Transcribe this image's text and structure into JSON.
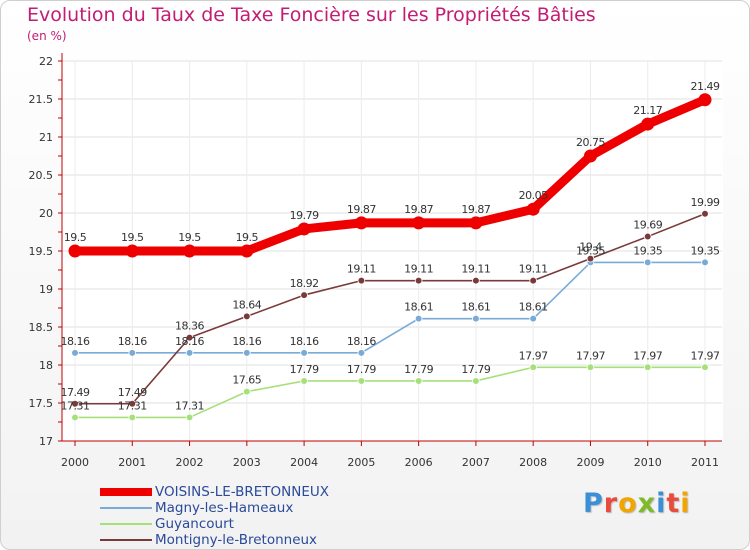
{
  "title": "Evolution du Taux de Taxe Foncière sur les Propriétés Bâties",
  "subtitle": "(en %)",
  "brand": {
    "letters": [
      "P",
      "r",
      "o",
      "x",
      "i",
      "t",
      "i"
    ],
    "colors": [
      "#3a8fd6",
      "#e94b3c",
      "#f2a400",
      "#7fba2a",
      "#3a8fd6",
      "#e94b3c",
      "#f2a400"
    ]
  },
  "chart_data": {
    "type": "line",
    "x": [
      "2000",
      "2001",
      "2002",
      "2003",
      "2004",
      "2005",
      "2006",
      "2007",
      "2008",
      "2009",
      "2010",
      "2011"
    ],
    "ylim": [
      17,
      22
    ],
    "yticks": [
      "17",
      "17.5",
      "18",
      "18.5",
      "19",
      "19.5",
      "20",
      "20.5",
      "21",
      "21.5",
      "22"
    ],
    "grid": true,
    "legend_position": "bottom-left",
    "series": [
      {
        "name": "VOISINS-LE-BRETONNEUX",
        "color": "#ee0000",
        "values": [
          19.5,
          19.5,
          19.5,
          19.5,
          19.79,
          19.87,
          19.87,
          19.87,
          20.05,
          20.75,
          21.17,
          21.49
        ],
        "labels": [
          "19.5",
          "19.5",
          "19.5",
          "19.5",
          "19.79",
          "19.87",
          "19.87",
          "19.87",
          "20.05",
          "20.75",
          "21.17",
          "21.49"
        ]
      },
      {
        "name": "Magny-les-Hameaux",
        "color": "#7aaad6",
        "values": [
          18.16,
          18.16,
          18.16,
          18.16,
          18.16,
          18.16,
          18.61,
          18.61,
          18.61,
          19.35,
          19.35,
          19.35
        ],
        "labels": [
          "18.16",
          "18.16",
          "18.16",
          "18.16",
          "18.16",
          "18.16",
          "18.61",
          "18.61",
          "18.61",
          "19.35",
          "19.35",
          "19.35"
        ]
      },
      {
        "name": "Guyancourt",
        "color": "#a6e07a",
        "values": [
          17.31,
          17.31,
          17.31,
          17.65,
          17.79,
          17.79,
          17.79,
          17.79,
          17.97,
          17.97,
          17.97,
          17.97
        ],
        "labels": [
          "17.31",
          "17.31",
          "17.31",
          "17.65",
          "17.79",
          "17.79",
          "17.79",
          "17.79",
          "17.97",
          "17.97",
          "17.97",
          "17.97"
        ]
      },
      {
        "name": "Montigny-le-Bretonneux",
        "color": "#7a3a3a",
        "values": [
          17.49,
          17.49,
          18.36,
          18.64,
          18.92,
          19.11,
          19.11,
          19.11,
          19.11,
          19.4,
          19.69,
          19.99
        ],
        "labels": [
          "17.49",
          "17.49",
          "18.36",
          "18.64",
          "18.92",
          "19.11",
          "19.11",
          "19.11",
          "19.11",
          "19.4",
          "19.69",
          "19.99"
        ]
      }
    ]
  }
}
